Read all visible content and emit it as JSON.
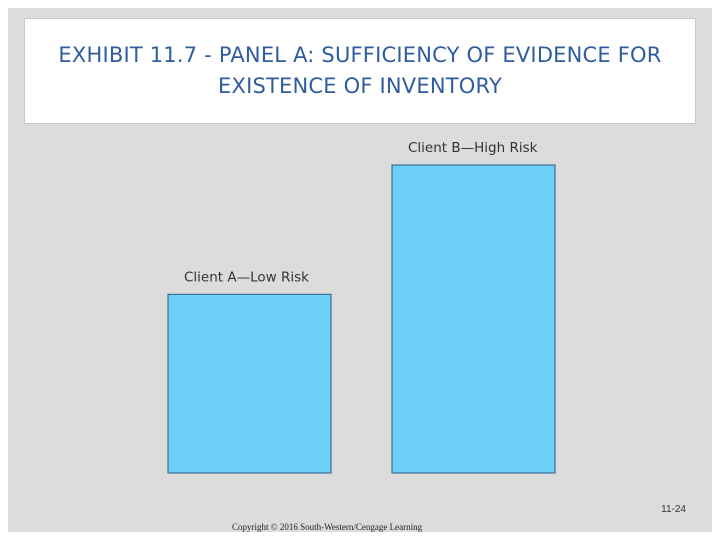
{
  "slide": {
    "title": "EXHIBIT 11.7 - PANEL A: SUFFICIENCY OF EVIDENCE FOR EXISTENCE OF INVENTORY",
    "page_number": "11-24",
    "copyright": "Copyright © 2016 South-Western/Cengage Learning"
  },
  "colors": {
    "background": "#dcdcdc",
    "bar_fill": "#6ecff6",
    "bar_stroke": "#3a6f8f",
    "title": "#2f5d9e"
  },
  "chart_data": {
    "type": "bar",
    "categories": [
      "Client A—Low Risk",
      "Client B—High Risk"
    ],
    "values": [
      0.58,
      1.0
    ],
    "value_unit": "relative amount of evidence (fraction of Client B)",
    "title": "",
    "xlabel": "",
    "ylabel": "",
    "grid": false,
    "legend": "none",
    "axes_shown": false
  }
}
